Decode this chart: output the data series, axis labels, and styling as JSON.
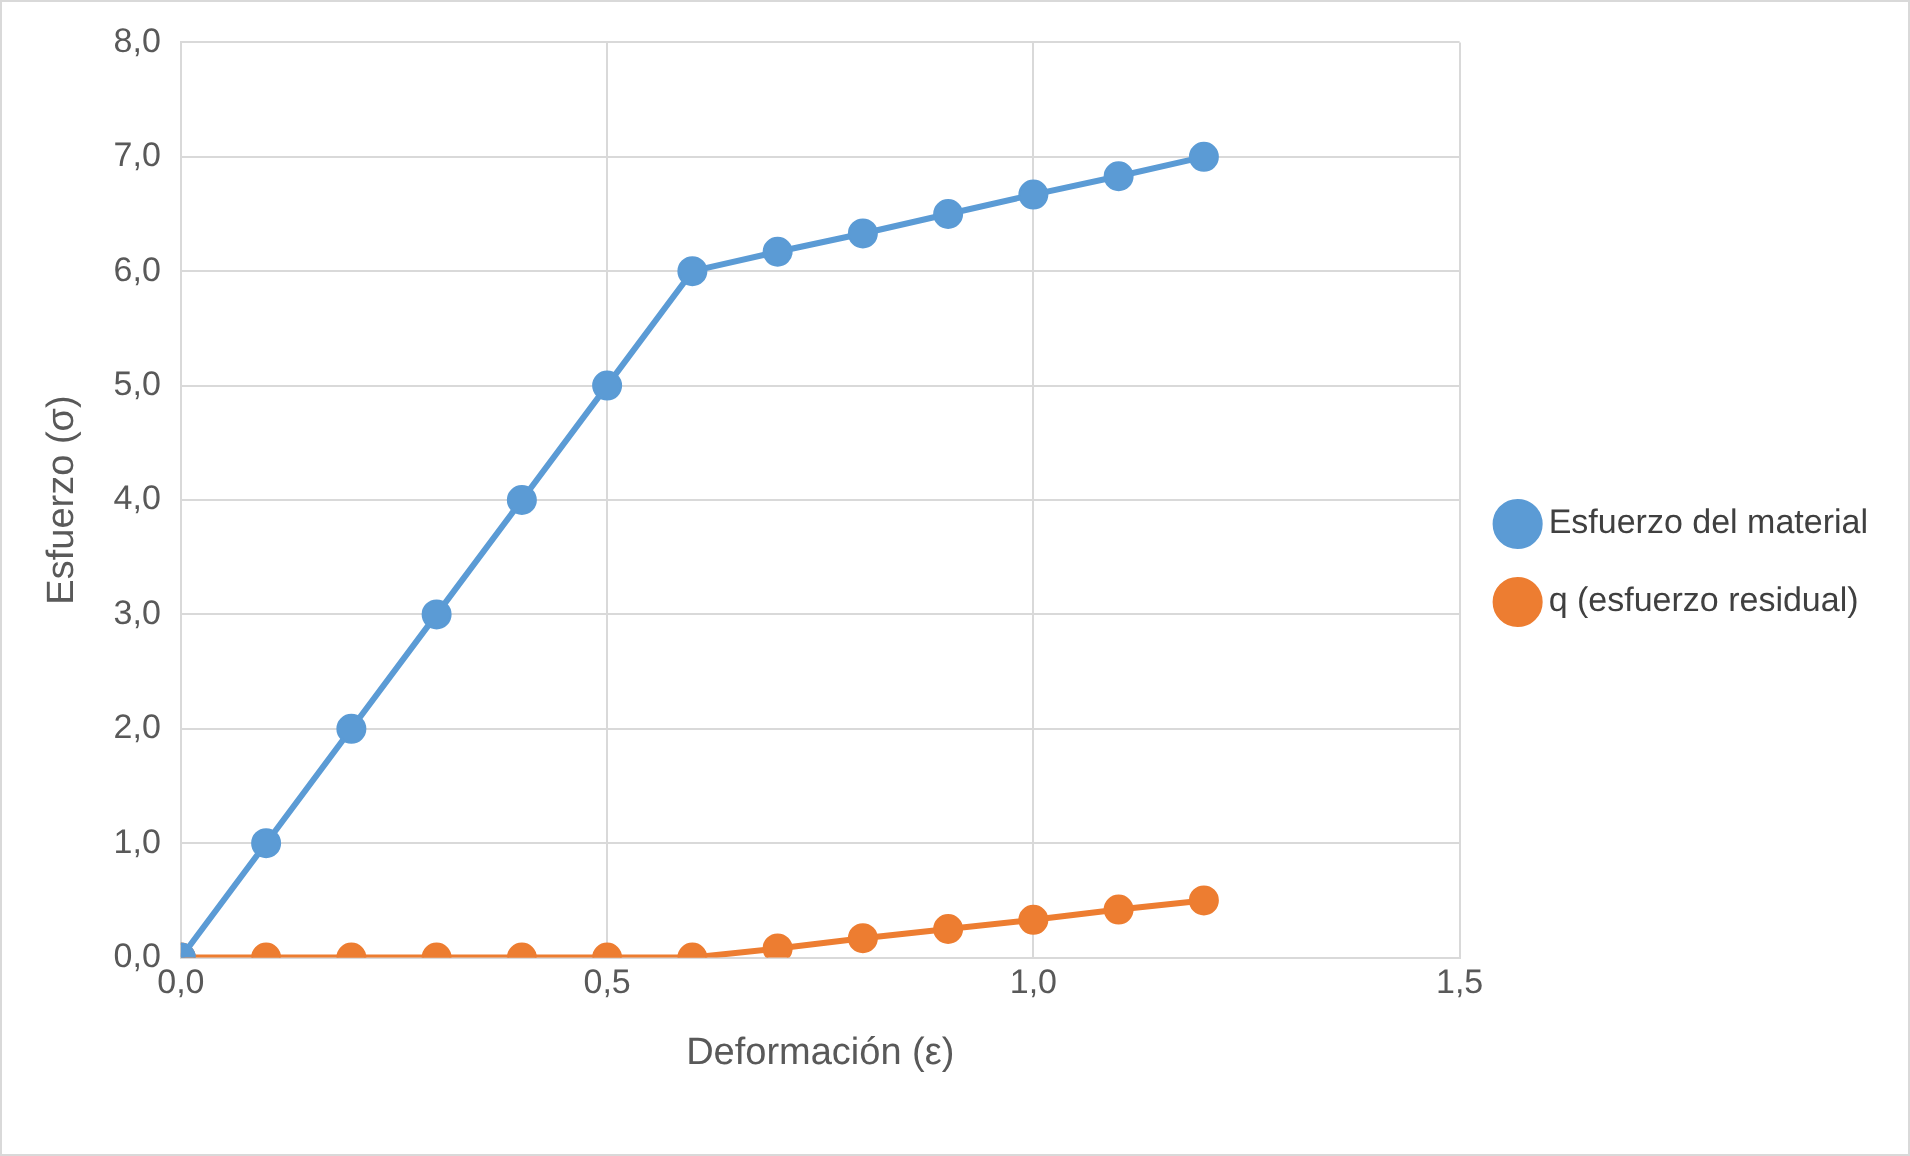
{
  "chart_data": {
    "type": "line",
    "xlabel": "Deformación (ε)",
    "ylabel": "Esfuerzo (σ)",
    "x": [
      0,
      0.1,
      0.2,
      0.3,
      0.4,
      0.5,
      0.6,
      0.7,
      0.8,
      0.9,
      1.0,
      1.1,
      1.2
    ],
    "series": [
      {
        "name": "Esfuerzo del material",
        "color": "#5b9bd5",
        "values": [
          0,
          1,
          2,
          3,
          4,
          5,
          6,
          6.17,
          6.33,
          6.5,
          6.67,
          6.83,
          7.0
        ]
      },
      {
        "name": "q (esfuerzo residual)",
        "color": "#ed7d31",
        "values": [
          0,
          0,
          0,
          0,
          0,
          0,
          0,
          0.08,
          0.17,
          0.25,
          0.33,
          0.42,
          0.5
        ]
      }
    ],
    "xlim": [
      0,
      1.5
    ],
    "xticks": [
      {
        "value": 0,
        "label": "0,0"
      },
      {
        "value": 0.5,
        "label": "0,5"
      },
      {
        "value": 1,
        "label": "1,0"
      },
      {
        "value": 1.5,
        "label": "1,5"
      }
    ],
    "ylim": [
      0,
      8
    ],
    "yticks": [
      {
        "value": 0,
        "label": "0,0"
      },
      {
        "value": 1,
        "label": "1,0"
      },
      {
        "value": 2,
        "label": "2,0"
      },
      {
        "value": 3,
        "label": "3,0"
      },
      {
        "value": 4,
        "label": "4,0"
      },
      {
        "value": 5,
        "label": "5,0"
      },
      {
        "value": 6,
        "label": "6,0"
      },
      {
        "value": 7,
        "label": "7,0"
      },
      {
        "value": 8,
        "label": "8,0"
      }
    ],
    "grid": true,
    "legend": "right",
    "marker": "circle",
    "line_style": "solid"
  }
}
